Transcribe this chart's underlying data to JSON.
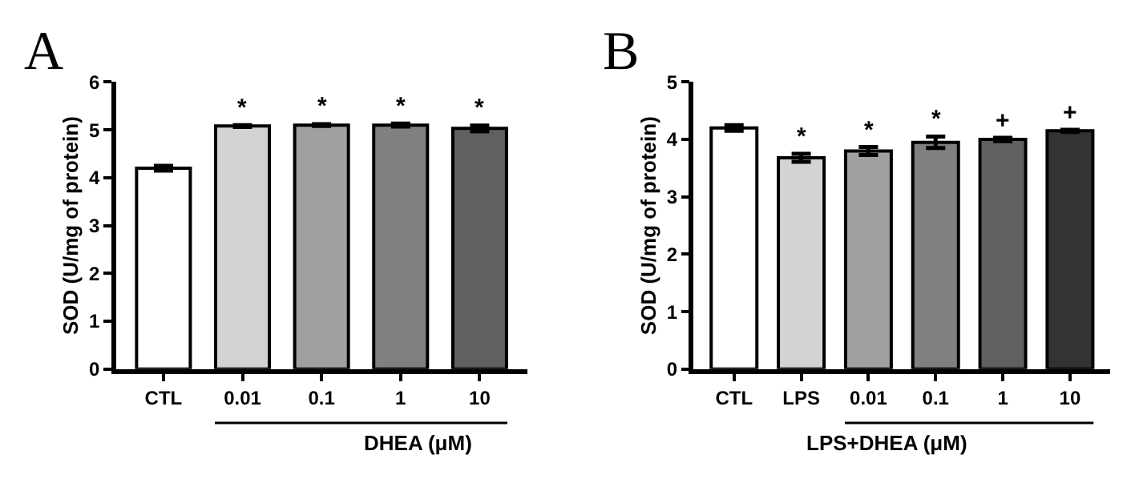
{
  "chart_data": [
    {
      "type": "bar",
      "title": "A",
      "ylabel": "SOD (U/mg of protein)",
      "xlabel": "DHEA (μM)",
      "categories": [
        "CTL",
        "0.01",
        "0.1",
        "1",
        "10"
      ],
      "values": [
        4.2,
        5.08,
        5.1,
        5.1,
        5.03
      ],
      "errors": [
        0.05,
        0.02,
        0.02,
        0.03,
        0.06
      ],
      "colors": [
        "#ffffff",
        "#d3d3d3",
        "#a0a0a0",
        "#808080",
        "#606060"
      ],
      "ylim": [
        0,
        6
      ],
      "yticks": [
        0,
        1,
        2,
        3,
        4,
        5,
        6
      ],
      "annotations": [
        {
          "text": "*",
          "x": "0.01",
          "y": 5.1
        },
        {
          "text": "*",
          "x": "0.1",
          "y": 5.12
        },
        {
          "text": "*",
          "x": "1",
          "y": 5.13
        },
        {
          "text": "*",
          "x": "10",
          "y": 5.09
        }
      ]
    },
    {
      "type": "bar",
      "title": "B",
      "ylabel": "SOD (U/mg of protein)",
      "xlabel": "LPS+DHEA (μM)",
      "categories": [
        "CTL",
        "LPS",
        "0.01",
        "0.1",
        "1",
        "10"
      ],
      "values": [
        4.2,
        3.68,
        3.8,
        3.95,
        4.0,
        4.15
      ],
      "errors": [
        0.05,
        0.07,
        0.07,
        0.1,
        0.03,
        0.02
      ],
      "colors": [
        "#ffffff",
        "#d3d3d3",
        "#a0a0a0",
        "#808080",
        "#606060",
        "#333333"
      ],
      "ylim": [
        0,
        5
      ],
      "yticks": [
        0,
        1,
        2,
        3,
        4,
        5
      ],
      "annotations": [
        {
          "text": "*",
          "x": "LPS",
          "y": 3.75
        },
        {
          "text": "*",
          "x": "0.01",
          "y": 3.87
        },
        {
          "text": "*",
          "x": "0.1",
          "y": 4.05
        },
        {
          "text": "+",
          "x": "1",
          "y": 4.03
        },
        {
          "text": "+",
          "x": "10",
          "y": 4.17
        }
      ]
    }
  ]
}
